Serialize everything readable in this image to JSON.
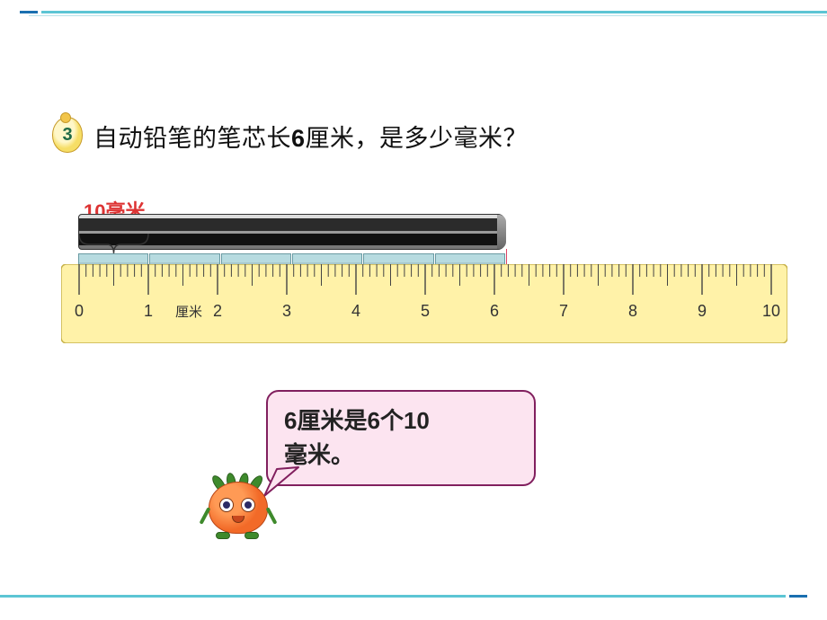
{
  "colors": {
    "accent_blue": "#1a6fb0",
    "accent_teal": "#5cc5d4",
    "ruler_fill": "#fff2a8",
    "ruler_border": "#c7b24a",
    "tick_color": "#444444",
    "segment_fill": "#b7dbe0",
    "mm_label_color": "#d33333",
    "bubble_fill": "#fce4f0",
    "bubble_border": "#811f5e",
    "pencil_dark": "#2b2b2b"
  },
  "badge": {
    "number": "3"
  },
  "question": {
    "prefix": "自动铅笔的笔芯长",
    "value": "6",
    "unit": "厘米",
    "suffix": "，是多少毫米？"
  },
  "mm_label": "10毫米",
  "ruler": {
    "unit_text": "厘米",
    "min": 0,
    "max": 10,
    "major_ticks": [
      0,
      1,
      2,
      3,
      4,
      5,
      6,
      7,
      8,
      9,
      10
    ],
    "pencil_end_cm": 6,
    "segments_count": 6,
    "label_fontsize": 18
  },
  "bubble": {
    "line1_a": "6",
    "line1_b": "厘米是",
    "line1_c": "6",
    "line1_d": "个",
    "line1_e": "10",
    "line2": "毫米。"
  }
}
